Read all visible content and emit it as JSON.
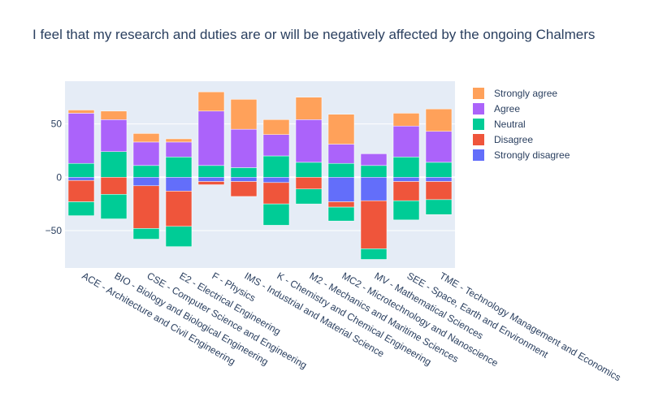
{
  "chart_data": {
    "type": "bar",
    "stacking": "relative",
    "title": "I feel that my research and duties are or will be negatively affected by the ongoing Chalmers",
    "xlabel": "",
    "ylabel": "",
    "ylim": [
      -85,
      90
    ],
    "yticks": [
      -50,
      0,
      50
    ],
    "grid": true,
    "legend_position": "right",
    "categories": [
      "ACE - Architecture and Civil Engineering",
      "BIO - Biology and Biological Engineering",
      "CSE - Computer Science and Engineering",
      "E2 - Electrical Engineering",
      "F - Physics",
      "IMS - Industrial and Material Science",
      "K - Chemistry and Chemical Engineering",
      "M2 - Mechanics and Maritime Sciences",
      "MC2 - Microtechnology and Nanoscience",
      "MV - Mathematical Sciences",
      "SEE - Space, Earth and Environment",
      "TME - Technology Management and Economics"
    ],
    "series": [
      {
        "name": "Strongly disagree",
        "color": "#636efa",
        "values": [
          -3,
          0,
          -8,
          -13,
          -4,
          -4,
          -5,
          0,
          -23,
          -22,
          -4,
          -4
        ]
      },
      {
        "name": "Disagree",
        "color": "#ef553b",
        "values": [
          -20,
          -16,
          -40,
          -33,
          -3,
          -14,
          -20,
          -11,
          -5,
          -45,
          -18,
          -17
        ]
      },
      {
        "name": "Neutral",
        "color": "#00cc96",
        "values": [
          -13,
          -23,
          -10,
          -19,
          0,
          0,
          -20,
          -14,
          -13,
          -10,
          -18,
          -14
        ]
      },
      {
        "name": "Neutral",
        "color": "#00cc96",
        "values": [
          13,
          24,
          11,
          19,
          11,
          9,
          20,
          14,
          13,
          11,
          19,
          14
        ]
      },
      {
        "name": "Agree",
        "color": "#ab63fa",
        "values": [
          47,
          30,
          22,
          14,
          51,
          36,
          20,
          40,
          18,
          11,
          29,
          29
        ]
      },
      {
        "name": "Strongly agree",
        "color": "#ffa15a",
        "values": [
          3,
          8,
          8,
          3,
          18,
          28,
          14,
          21,
          28,
          0,
          12,
          21
        ]
      }
    ],
    "legend": [
      {
        "name": "Strongly agree",
        "color": "#ffa15a"
      },
      {
        "name": "Agree",
        "color": "#ab63fa"
      },
      {
        "name": "Neutral",
        "color": "#00cc96"
      },
      {
        "name": "Disagree",
        "color": "#ef553b"
      },
      {
        "name": "Strongly disagree",
        "color": "#636efa"
      }
    ],
    "plot_background": "#e5ecf6"
  }
}
